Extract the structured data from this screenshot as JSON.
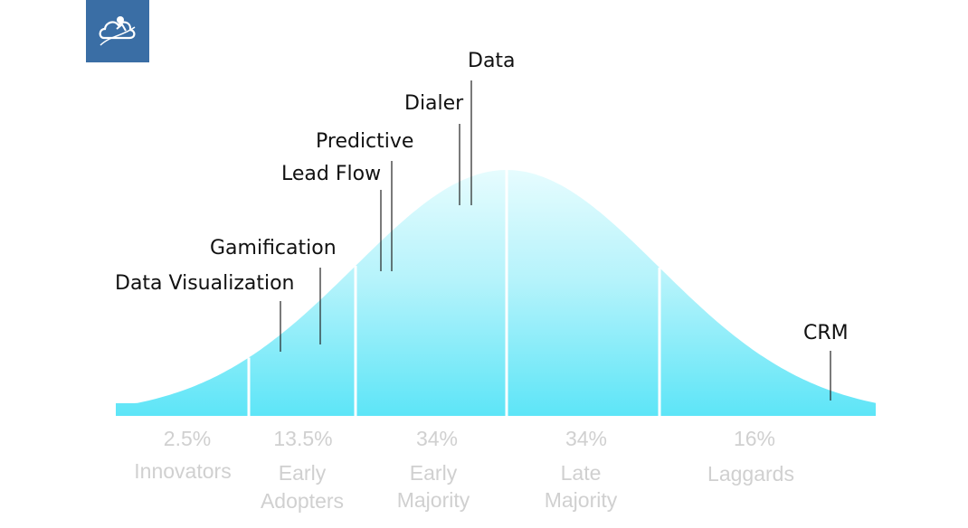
{
  "logo": {
    "icon": "cloud-person-icon",
    "color": "#3a6ea5"
  },
  "segments": [
    {
      "percent": "2.5%",
      "lines": [
        "Innovators"
      ]
    },
    {
      "percent": "13.5%",
      "lines": [
        "Early",
        "Adopters"
      ]
    },
    {
      "percent": "34%",
      "lines": [
        "Early",
        "Majority"
      ]
    },
    {
      "percent": "34%",
      "lines": [
        "Late",
        "Majority"
      ]
    },
    {
      "percent": "16%",
      "lines": [
        "Laggards"
      ]
    }
  ],
  "technologies": [
    {
      "label": "Data Visualization"
    },
    {
      "label": "Gamification"
    },
    {
      "label": "Lead Flow"
    },
    {
      "label": "Predictive"
    },
    {
      "label": "Dialer"
    },
    {
      "label": "Data"
    },
    {
      "label": "CRM"
    }
  ],
  "colors": {
    "curve_top": "#d8fafd",
    "curve_bottom": "#5fe6f7",
    "divider": "#ffffff",
    "label_gray": "#d0d0d0"
  }
}
